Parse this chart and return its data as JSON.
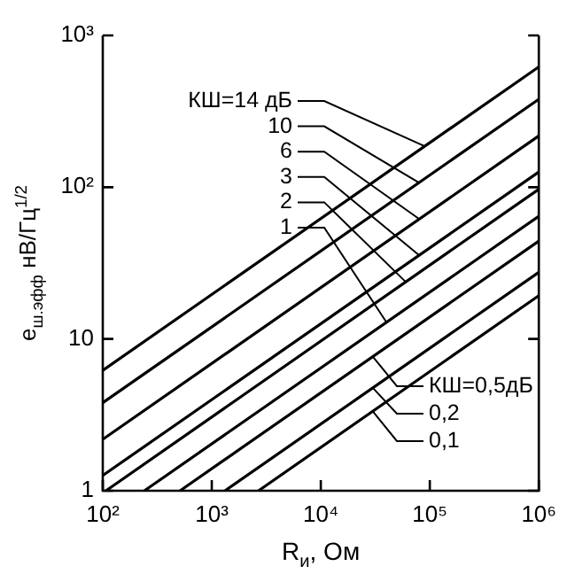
{
  "chart_data": {
    "type": "line",
    "xlabel": "R$_{и}$, Ом",
    "ylabel": "e$_{ш.эфф}$ нВ/Гц$^{1/2}$",
    "log": "xy",
    "xlim": [
      100,
      1000000
    ],
    "ylim": [
      1,
      1000
    ],
    "xticks": [
      {
        "value": 100,
        "label": "10²"
      },
      {
        "value": 1000,
        "label": "10³"
      },
      {
        "value": 10000,
        "label": "10⁴"
      },
      {
        "value": 100000,
        "label": "10⁵"
      },
      {
        "value": 1000000,
        "label": "10⁶"
      }
    ],
    "yticks": [
      1,
      10,
      {
        "value": 100,
        "label": "10²"
      },
      {
        "value": 1000,
        "label": "10³"
      }
    ],
    "grid": false,
    "legend": false,
    "marker": "none",
    "line_style": "solid",
    "series": [
      {
        "color": "#000000",
        "x": [
          100,
          1000000
        ],
        "values": [
          6.21,
          621
        ]
      },
      {
        "color": "#000000",
        "x": [
          100,
          1000000
        ],
        "values": [
          3.8,
          380
        ]
      },
      {
        "color": "#000000",
        "x": [
          100,
          1000000
        ],
        "values": [
          2.18,
          218
        ]
      },
      {
        "color": "#000000",
        "x": [
          100,
          1000000
        ],
        "values": [
          1.26,
          126
        ]
      },
      {
        "color": "#000000",
        "x": [
          107,
          1000000
        ],
        "values": [
          1,
          97
        ]
      },
      {
        "color": "#000000",
        "x": [
          241,
          1000000
        ],
        "values": [
          1,
          64.4
        ]
      },
      {
        "color": "#000000",
        "x": [
          512,
          1000000
        ],
        "values": [
          1,
          44.2
        ]
      },
      {
        "color": "#000000",
        "x": [
          1323,
          1000000
        ],
        "values": [
          1,
          27.5
        ]
      },
      {
        "color": "#000000",
        "x": [
          2685,
          1000000
        ],
        "values": [
          1,
          19.3
        ]
      }
    ],
    "annotations": [
      {
        "text": "КШ=14 дБ",
        "x": 90000,
        "y": 186
      },
      {
        "text": "10",
        "x": 80000,
        "y": 107
      },
      {
        "text": "6",
        "x": 80000,
        "y": 61.7
      },
      {
        "text": "3",
        "x": 80000,
        "y": 35.6
      },
      {
        "text": "2",
        "x": 60000,
        "y": 23.8
      },
      {
        "text": "1",
        "x": 40000,
        "y": 12.9
      },
      {
        "text": "КШ=0,5дБ",
        "x": 30000,
        "y": 7.65
      },
      {
        "text": "0,2",
        "x": 30000,
        "y": 4.76
      },
      {
        "text": "0,1",
        "x": 30000,
        "y": 3.34
      }
    ]
  }
}
